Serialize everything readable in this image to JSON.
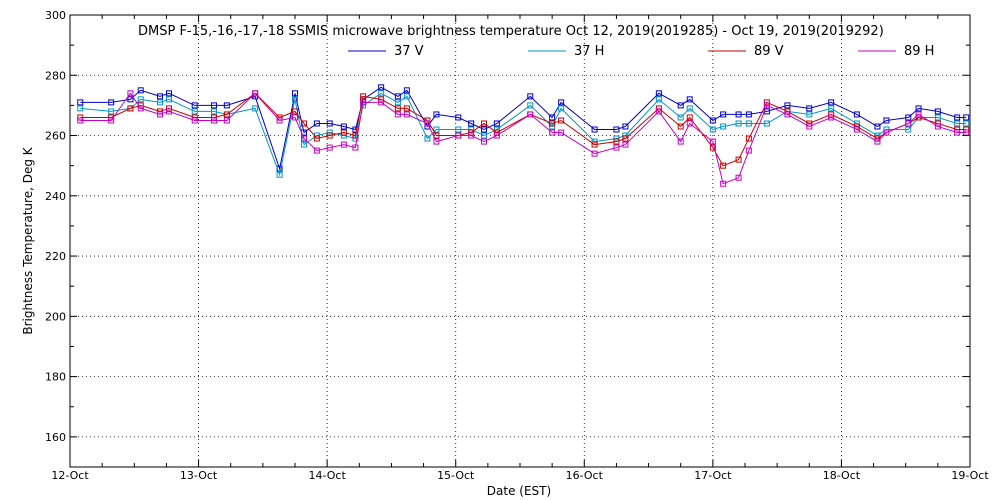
{
  "chart_data": {
    "type": "line",
    "title": "DMSP F-15,-16,-17,-18 SSMIS microwave brightness temperature Oct 12, 2019(2019285) - Oct 19, 2019(2019292)",
    "xlabel": "Date (EST)",
    "ylabel": "Brightness Temperature, Deg K",
    "x_ticks": [
      "12-Oct",
      "13-Oct",
      "14-Oct",
      "15-Oct",
      "16-Oct",
      "17-Oct",
      "18-Oct",
      "19-Oct"
    ],
    "xlim_days": [
      0,
      7
    ],
    "ylim": [
      150,
      300
    ],
    "y_ticks": [
      160,
      180,
      200,
      220,
      240,
      260,
      280,
      300
    ],
    "grid": true,
    "legend_position": "top",
    "x": [
      0.08,
      0.32,
      0.47,
      0.55,
      0.7,
      0.77,
      0.97,
      1.12,
      1.22,
      1.44,
      1.63,
      1.75,
      1.82,
      1.92,
      2.02,
      2.13,
      2.22,
      2.28,
      2.42,
      2.55,
      2.62,
      2.78,
      2.85,
      3.02,
      3.12,
      3.22,
      3.32,
      3.58,
      3.75,
      3.82,
      4.08,
      4.25,
      4.32,
      4.58,
      4.75,
      4.82,
      5.0,
      5.08,
      5.2,
      5.28,
      5.42,
      5.58,
      5.75,
      5.92,
      6.12,
      6.28,
      6.35,
      6.52,
      6.6,
      6.75,
      6.9,
      6.97
    ],
    "series": [
      {
        "name": "37 V",
        "color": "#0000c8",
        "values": [
          271,
          271,
          272,
          275,
          273,
          274,
          270,
          270,
          270,
          273,
          249,
          274,
          261,
          264,
          264,
          263,
          262,
          272,
          276,
          273,
          275,
          263,
          267,
          266,
          264,
          262,
          264,
          273,
          266,
          271,
          262,
          262,
          263,
          274,
          270,
          272,
          265,
          267,
          267,
          267,
          268,
          270,
          269,
          271,
          267,
          263,
          265,
          266,
          269,
          268,
          266,
          266
        ]
      },
      {
        "name": "37 H",
        "color": "#0096c8",
        "values": [
          269,
          268,
          269,
          272,
          271,
          272,
          268,
          268,
          267,
          269,
          247,
          272,
          257,
          260,
          261,
          260,
          259,
          270,
          274,
          271,
          273,
          259,
          262,
          262,
          262,
          260,
          262,
          270,
          263,
          269,
          258,
          259,
          260,
          272,
          266,
          269,
          262,
          263,
          264,
          264,
          264,
          268,
          267,
          269,
          264,
          260,
          262,
          262,
          266,
          266,
          264,
          264
        ]
      },
      {
        "name": "89 V",
        "color": "#c80000",
        "values": [
          266,
          266,
          269,
          270,
          268,
          269,
          266,
          266,
          267,
          274,
          266,
          268,
          264,
          259,
          260,
          261,
          260,
          273,
          272,
          269,
          269,
          265,
          260,
          260,
          261,
          264,
          261,
          267,
          264,
          265,
          257,
          258,
          259,
          269,
          263,
          266,
          256,
          250,
          252,
          259,
          271,
          268,
          264,
          267,
          263,
          259,
          261,
          264,
          266,
          264,
          262,
          262
        ]
      },
      {
        "name": "89 H",
        "color": "#c800c8",
        "values": [
          265,
          265,
          274,
          269,
          267,
          268,
          265,
          265,
          265,
          274,
          265,
          266,
          259,
          255,
          256,
          257,
          256,
          271,
          271,
          267,
          267,
          264,
          258,
          260,
          260,
          258,
          260,
          267,
          261,
          261,
          254,
          256,
          257,
          268,
          258,
          264,
          258,
          244,
          246,
          255,
          270,
          267,
          263,
          266,
          262,
          258,
          261,
          264,
          267,
          263,
          261,
          261
        ]
      }
    ]
  }
}
